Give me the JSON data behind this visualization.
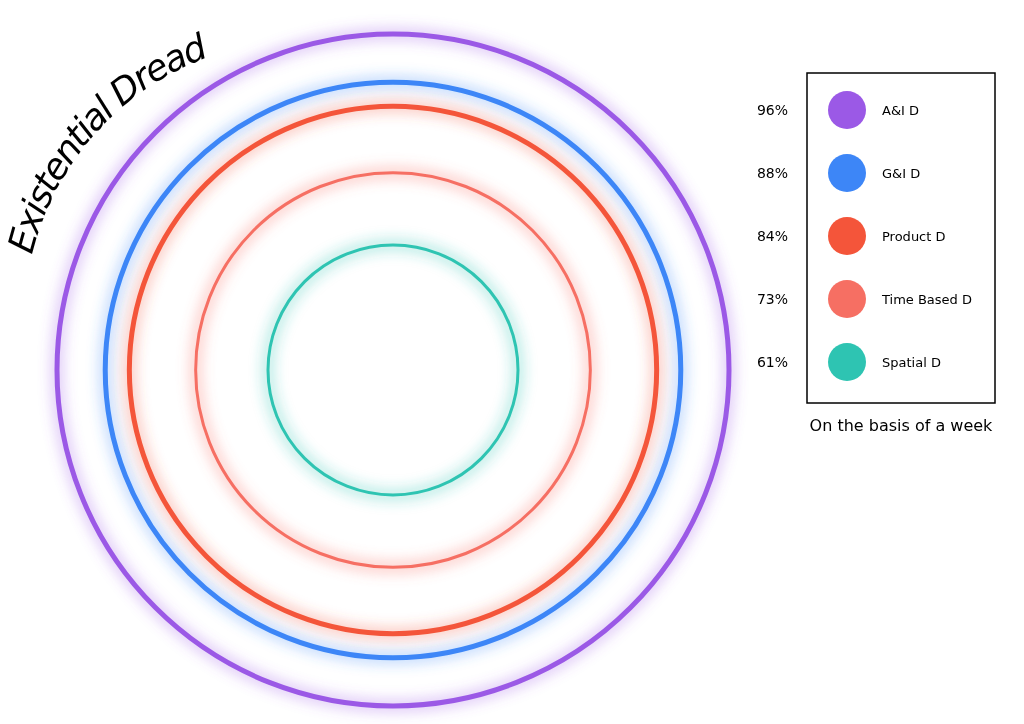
{
  "chart_data": {
    "type": "other",
    "title": "Existential Dread",
    "categories": [
      "A&I D",
      "G&I D",
      "Product D",
      "Time Based D",
      "Spatial D"
    ],
    "values": [
      96,
      88,
      84,
      73,
      61
    ],
    "value_labels": [
      "96%",
      "88%",
      "84%",
      "73%",
      "61%"
    ],
    "colors": [
      "#9b59e6",
      "#3d86f7",
      "#f4553a",
      "#f66f63",
      "#2ec4b2"
    ],
    "annotations": [
      "On the basis of a week"
    ]
  }
}
